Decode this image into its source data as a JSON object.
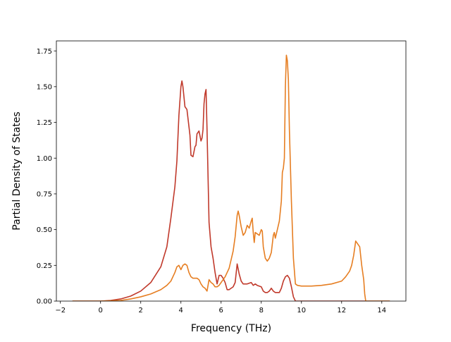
{
  "chart_data": {
    "type": "line",
    "title": "",
    "xlabel": "Frequency (THz)",
    "ylabel": "Partial Density of States",
    "xlim": [
      -2.2,
      15.2
    ],
    "ylim": [
      0.0,
      1.82
    ],
    "xticks": [
      -2,
      0,
      2,
      4,
      6,
      8,
      10,
      12,
      14
    ],
    "xtick_labels": [
      "−2",
      "0",
      "2",
      "4",
      "6",
      "8",
      "10",
      "12",
      "14"
    ],
    "yticks": [
      0.0,
      0.25,
      0.5,
      0.75,
      1.0,
      1.25,
      1.5,
      1.75
    ],
    "ytick_labels": [
      "0.00",
      "0.25",
      "0.50",
      "0.75",
      "1.00",
      "1.25",
      "1.50",
      "1.75"
    ],
    "grid": false,
    "legend": "none",
    "series": [
      {
        "color": "#c0392b",
        "points": [
          [
            -1.4,
            0.0
          ],
          [
            0.0,
            0.0
          ],
          [
            0.5,
            0.005
          ],
          [
            1.0,
            0.015
          ],
          [
            1.5,
            0.035
          ],
          [
            2.0,
            0.07
          ],
          [
            2.5,
            0.13
          ],
          [
            3.0,
            0.24
          ],
          [
            3.3,
            0.38
          ],
          [
            3.5,
            0.58
          ],
          [
            3.7,
            0.8
          ],
          [
            3.8,
            0.98
          ],
          [
            3.9,
            1.3
          ],
          [
            4.0,
            1.5
          ],
          [
            4.05,
            1.54
          ],
          [
            4.1,
            1.5
          ],
          [
            4.2,
            1.36
          ],
          [
            4.3,
            1.34
          ],
          [
            4.4,
            1.22
          ],
          [
            4.45,
            1.16
          ],
          [
            4.5,
            1.02
          ],
          [
            4.6,
            1.01
          ],
          [
            4.7,
            1.08
          ],
          [
            4.75,
            1.09
          ],
          [
            4.8,
            1.17
          ],
          [
            4.9,
            1.19
          ],
          [
            5.0,
            1.12
          ],
          [
            5.05,
            1.14
          ],
          [
            5.1,
            1.2
          ],
          [
            5.15,
            1.38
          ],
          [
            5.2,
            1.45
          ],
          [
            5.25,
            1.48
          ],
          [
            5.3,
            1.2
          ],
          [
            5.4,
            0.55
          ],
          [
            5.5,
            0.38
          ],
          [
            5.6,
            0.3
          ],
          [
            5.7,
            0.2
          ],
          [
            5.8,
            0.12
          ],
          [
            5.9,
            0.18
          ],
          [
            6.0,
            0.18
          ],
          [
            6.1,
            0.16
          ],
          [
            6.2,
            0.13
          ],
          [
            6.3,
            0.08
          ],
          [
            6.4,
            0.08
          ],
          [
            6.5,
            0.09
          ],
          [
            6.6,
            0.1
          ],
          [
            6.7,
            0.13
          ],
          [
            6.8,
            0.26
          ],
          [
            6.9,
            0.19
          ],
          [
            7.0,
            0.14
          ],
          [
            7.1,
            0.12
          ],
          [
            7.3,
            0.12
          ],
          [
            7.5,
            0.13
          ],
          [
            7.6,
            0.11
          ],
          [
            7.7,
            0.12
          ],
          [
            7.8,
            0.11
          ],
          [
            8.0,
            0.1
          ],
          [
            8.1,
            0.07
          ],
          [
            8.2,
            0.06
          ],
          [
            8.3,
            0.06
          ],
          [
            8.4,
            0.07
          ],
          [
            8.5,
            0.09
          ],
          [
            8.6,
            0.07
          ],
          [
            8.7,
            0.06
          ],
          [
            8.8,
            0.06
          ],
          [
            8.9,
            0.06
          ],
          [
            9.0,
            0.09
          ],
          [
            9.1,
            0.14
          ],
          [
            9.2,
            0.17
          ],
          [
            9.3,
            0.18
          ],
          [
            9.4,
            0.16
          ],
          [
            9.5,
            0.1
          ],
          [
            9.6,
            0.03
          ],
          [
            9.7,
            0.0
          ],
          [
            10.0,
            0.0
          ],
          [
            12.0,
            0.0
          ],
          [
            14.4,
            0.0
          ]
        ]
      },
      {
        "color": "#e67e22",
        "points": [
          [
            -1.4,
            0.0
          ],
          [
            0.0,
            0.0
          ],
          [
            1.0,
            0.005
          ],
          [
            1.5,
            0.015
          ],
          [
            2.0,
            0.03
          ],
          [
            2.5,
            0.05
          ],
          [
            3.0,
            0.08
          ],
          [
            3.3,
            0.11
          ],
          [
            3.5,
            0.14
          ],
          [
            3.7,
            0.2
          ],
          [
            3.8,
            0.24
          ],
          [
            3.9,
            0.25
          ],
          [
            4.0,
            0.22
          ],
          [
            4.1,
            0.25
          ],
          [
            4.2,
            0.26
          ],
          [
            4.3,
            0.25
          ],
          [
            4.4,
            0.2
          ],
          [
            4.5,
            0.17
          ],
          [
            4.6,
            0.16
          ],
          [
            4.8,
            0.16
          ],
          [
            4.9,
            0.15
          ],
          [
            5.0,
            0.12
          ],
          [
            5.1,
            0.1
          ],
          [
            5.2,
            0.09
          ],
          [
            5.3,
            0.07
          ],
          [
            5.4,
            0.15
          ],
          [
            5.5,
            0.13
          ],
          [
            5.6,
            0.12
          ],
          [
            5.7,
            0.1
          ],
          [
            5.8,
            0.1
          ],
          [
            5.9,
            0.11
          ],
          [
            6.0,
            0.13
          ],
          [
            6.1,
            0.15
          ],
          [
            6.2,
            0.17
          ],
          [
            6.4,
            0.23
          ],
          [
            6.6,
            0.35
          ],
          [
            6.7,
            0.45
          ],
          [
            6.8,
            0.6
          ],
          [
            6.85,
            0.63
          ],
          [
            6.9,
            0.6
          ],
          [
            7.0,
            0.52
          ],
          [
            7.1,
            0.46
          ],
          [
            7.2,
            0.48
          ],
          [
            7.3,
            0.53
          ],
          [
            7.4,
            0.51
          ],
          [
            7.5,
            0.56
          ],
          [
            7.55,
            0.58
          ],
          [
            7.6,
            0.48
          ],
          [
            7.65,
            0.41
          ],
          [
            7.7,
            0.48
          ],
          [
            7.8,
            0.47
          ],
          [
            7.9,
            0.46
          ],
          [
            8.0,
            0.5
          ],
          [
            8.05,
            0.49
          ],
          [
            8.1,
            0.38
          ],
          [
            8.2,
            0.3
          ],
          [
            8.3,
            0.28
          ],
          [
            8.4,
            0.3
          ],
          [
            8.5,
            0.34
          ],
          [
            8.6,
            0.46
          ],
          [
            8.65,
            0.48
          ],
          [
            8.7,
            0.44
          ],
          [
            8.8,
            0.5
          ],
          [
            8.9,
            0.56
          ],
          [
            9.0,
            0.7
          ],
          [
            9.05,
            0.9
          ],
          [
            9.1,
            0.93
          ],
          [
            9.15,
            1.0
          ],
          [
            9.2,
            1.5
          ],
          [
            9.25,
            1.72
          ],
          [
            9.3,
            1.68
          ],
          [
            9.35,
            1.55
          ],
          [
            9.4,
            1.2
          ],
          [
            9.5,
            0.7
          ],
          [
            9.6,
            0.3
          ],
          [
            9.7,
            0.12
          ],
          [
            9.8,
            0.11
          ],
          [
            10.0,
            0.105
          ],
          [
            10.5,
            0.105
          ],
          [
            11.0,
            0.11
          ],
          [
            11.5,
            0.12
          ],
          [
            12.0,
            0.14
          ],
          [
            12.2,
            0.17
          ],
          [
            12.4,
            0.21
          ],
          [
            12.5,
            0.25
          ],
          [
            12.6,
            0.32
          ],
          [
            12.7,
            0.42
          ],
          [
            12.8,
            0.4
          ],
          [
            12.9,
            0.38
          ],
          [
            13.0,
            0.25
          ],
          [
            13.1,
            0.15
          ],
          [
            13.15,
            0.05
          ],
          [
            13.2,
            0.0
          ],
          [
            14.4,
            0.0
          ]
        ]
      }
    ]
  }
}
